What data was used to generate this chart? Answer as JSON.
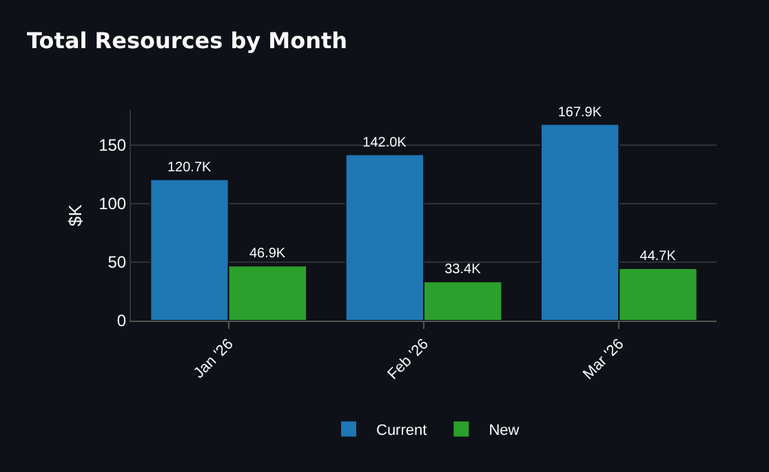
{
  "chart_data": {
    "type": "bar",
    "title": "Total Resources by Month",
    "ylabel": "$K",
    "categories": [
      "Jan '26",
      "Feb '26",
      "Mar '26"
    ],
    "series": [
      {
        "name": "Current",
        "color": "#1f77b4",
        "values": [
          120.7,
          142.0,
          167.9
        ],
        "value_labels": [
          "120.7K",
          "142.0K",
          "167.9K"
        ]
      },
      {
        "name": "New",
        "color": "#2ca02c",
        "values": [
          46.9,
          33.4,
          44.7
        ],
        "value_labels": [
          "46.9K",
          "33.4K",
          "44.7K"
        ]
      }
    ],
    "ylim": [
      0,
      180
    ],
    "yticks": [
      0,
      50,
      100,
      150
    ],
    "grid": "y",
    "legend": "bottom"
  }
}
